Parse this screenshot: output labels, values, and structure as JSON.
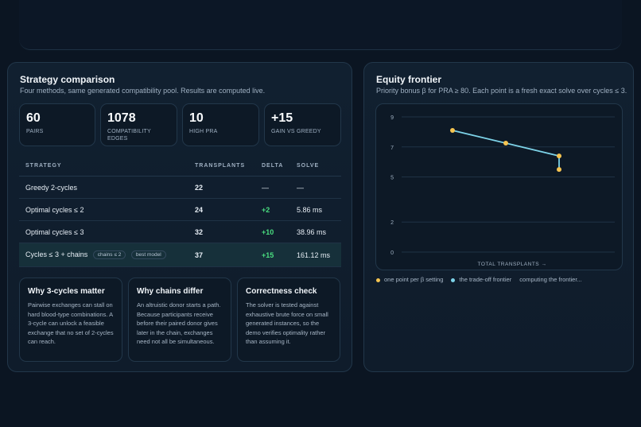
{
  "strategy": {
    "title": "Strategy comparison",
    "subtitle": "Four methods, same generated compatibility pool. Results are computed live.",
    "stats": [
      {
        "value": "60",
        "label": "PAIRS"
      },
      {
        "value": "1078",
        "label": "COMPATIBILITY EDGES"
      },
      {
        "value": "10",
        "label": "HIGH PRA"
      },
      {
        "value": "+15",
        "label": "GAIN VS GREEDY"
      }
    ],
    "table": {
      "headers": [
        "STRATEGY",
        "TRANSPLANTS",
        "DELTA",
        "SOLVE"
      ],
      "rows": [
        {
          "strategy": "Greedy 2-cycles",
          "transplants": "22",
          "delta": "—",
          "solve": "—"
        },
        {
          "strategy": "Optimal cycles ≤ 2",
          "transplants": "24",
          "delta": "+2",
          "solve": "5.86 ms"
        },
        {
          "strategy": "Optimal cycles ≤ 3",
          "transplants": "32",
          "delta": "+10",
          "solve": "38.96 ms"
        },
        {
          "strategy": "Cycles ≤ 3 + chains",
          "tag1": "chains ≤ 2",
          "tag2": "best model",
          "transplants": "37",
          "delta": "+15",
          "solve": "161.12 ms"
        }
      ]
    },
    "cards": [
      {
        "title": "Why 3-cycles matter",
        "body": "Pairwise exchanges can stall on hard blood-type combinations. A 3-cycle can unlock a feasible exchange that no set of 2-cycles can reach."
      },
      {
        "title": "Why chains differ",
        "body": "An altruistic donor starts a path. Because participants receive before their paired donor gives later in the chain, exchanges need not all be simultaneous."
      },
      {
        "title": "Correctness check",
        "body": "The solver is tested against exhaustive brute force on small generated instances, so the demo verifies optimality rather than assuming it."
      }
    ]
  },
  "equity": {
    "title": "Equity frontier",
    "subtitle": "Priority bonus β for PRA ≥ 80. Each point is a fresh exact solve over cycles ≤ 3.",
    "legend": {
      "points": "one point per β setting",
      "line": "the trade-off frontier",
      "status": "computing the frontier..."
    },
    "colors": {
      "point": "#f5c451",
      "line": "#7dd3e8"
    }
  },
  "chart_data": {
    "type": "line",
    "xlabel": "TOTAL TRANSPLANTS →",
    "ylabel": "",
    "ylim": [
      0,
      9
    ],
    "yticks": [
      0,
      2,
      5,
      7,
      9
    ],
    "grid": true,
    "x": [
      1,
      2,
      3,
      3
    ],
    "series": [
      {
        "values": [
          8.1,
          7.25,
          6.4,
          5.5
        ]
      }
    ]
  }
}
